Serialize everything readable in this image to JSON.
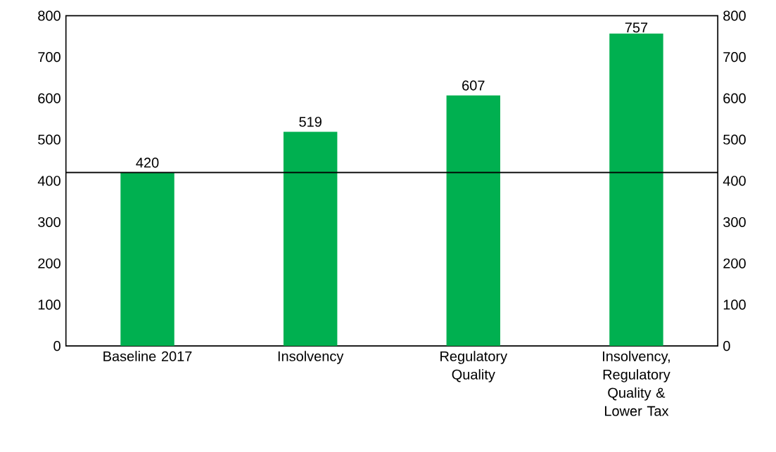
{
  "chart_data": {
    "type": "bar",
    "categories": [
      "Baseline 2017",
      "Insolvency",
      "Regulatory Quality",
      "Insolvency, Regulatory Quality & Lower Tax"
    ],
    "values": [
      420,
      519,
      607,
      757
    ],
    "color": "#00b050",
    "data_labels": true,
    "ylim": [
      0,
      800
    ],
    "yticks": [
      0,
      100,
      200,
      300,
      400,
      500,
      600,
      700,
      800
    ],
    "y2lim": [
      0,
      800
    ],
    "y2ticks": [
      0,
      100,
      200,
      300,
      400,
      500,
      600,
      700,
      800
    ],
    "ref_lines": [
      {
        "axis": "y",
        "value": 420,
        "color": "#000000"
      }
    ],
    "grid": false
  }
}
